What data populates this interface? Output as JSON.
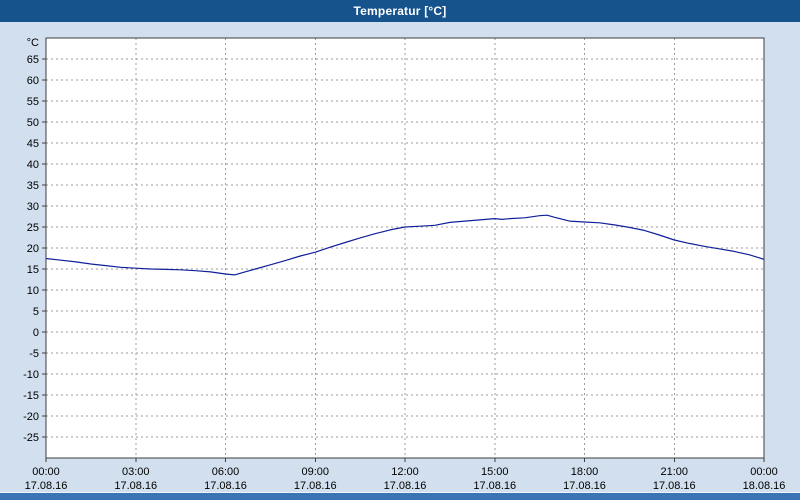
{
  "window": {
    "title": "Temperatur [°C]"
  },
  "colors": {
    "titlebar_bg": "#16538c",
    "titlebar_text": "#ffffff",
    "page_bg": "#d2dfee",
    "plot_bg": "#ffffff",
    "grid": "#9b9b9b",
    "border": "#3c3c3c",
    "line": "#102099",
    "scrollbar": "#3a74b4"
  },
  "chart_data": {
    "type": "line",
    "title": "Temperatur [°C]",
    "ylabel": "°C",
    "xlabel": "",
    "legend": "none",
    "grid": "dashed",
    "xlim": [
      0,
      24
    ],
    "ylim": [
      -30,
      70
    ],
    "y_ticks": [
      65,
      60,
      55,
      50,
      45,
      40,
      35,
      30,
      25,
      20,
      15,
      10,
      5,
      0,
      -5,
      -10,
      -15,
      -20,
      -25
    ],
    "x_ticks": [
      {
        "hour": 0,
        "time": "00:00",
        "date": "17.08.16"
      },
      {
        "hour": 3,
        "time": "03:00",
        "date": "17.08.16"
      },
      {
        "hour": 6,
        "time": "06:00",
        "date": "17.08.16"
      },
      {
        "hour": 9,
        "time": "09:00",
        "date": "17.08.16"
      },
      {
        "hour": 12,
        "time": "12:00",
        "date": "17.08.16"
      },
      {
        "hour": 15,
        "time": "15:00",
        "date": "17.08.16"
      },
      {
        "hour": 18,
        "time": "18:00",
        "date": "17.08.16"
      },
      {
        "hour": 21,
        "time": "21:00",
        "date": "17.08.16"
      },
      {
        "hour": 24,
        "time": "00:00",
        "date": "18.08.16"
      }
    ],
    "series": [
      {
        "name": "Temperatur",
        "x_hours": [
          0,
          0.5,
          1,
          1.5,
          2,
          2.5,
          3,
          3.5,
          4,
          4.5,
          5,
          5.5,
          6,
          6.3,
          6.5,
          7,
          7.5,
          8,
          8.5,
          9,
          9.5,
          10,
          10.5,
          11,
          11.5,
          12,
          12.5,
          13,
          13.5,
          14,
          14.5,
          15,
          15.25,
          15.5,
          16,
          16.5,
          16.75,
          17,
          17.5,
          18,
          18.5,
          19,
          19.5,
          20,
          20.5,
          21,
          21.5,
          22,
          22.5,
          23,
          23.5,
          24
        ],
        "temps": [
          17.5,
          17.1,
          16.7,
          16.2,
          15.8,
          15.4,
          15.2,
          15.0,
          14.9,
          14.8,
          14.6,
          14.3,
          13.8,
          13.6,
          14.0,
          15.0,
          16.0,
          17.0,
          18.1,
          19.0,
          20.2,
          21.3,
          22.4,
          23.4,
          24.3,
          25.0,
          25.2,
          25.4,
          26.1,
          26.4,
          26.7,
          27.0,
          26.8,
          27.0,
          27.2,
          27.7,
          27.8,
          27.3,
          26.4,
          26.2,
          26.0,
          25.5,
          24.9,
          24.2,
          23.1,
          21.9,
          21.1,
          20.4,
          19.8,
          19.2,
          18.4,
          17.3
        ]
      }
    ]
  }
}
